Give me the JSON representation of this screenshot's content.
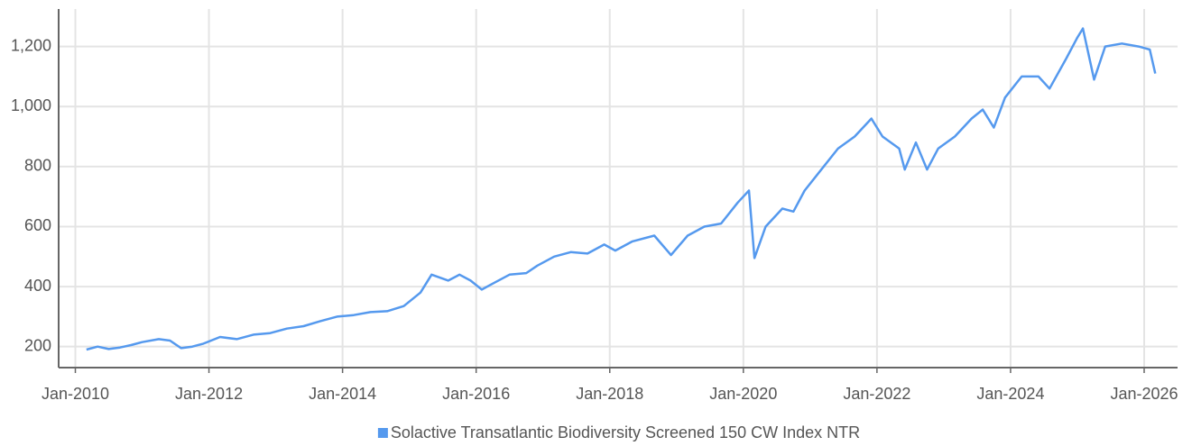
{
  "chart_data": {
    "type": "line",
    "x": [
      "2010-03",
      "2010-05",
      "2010-07",
      "2010-09",
      "2010-11",
      "2011-01",
      "2011-04",
      "2011-06",
      "2011-08",
      "2011-10",
      "2011-12",
      "2012-03",
      "2012-06",
      "2012-09",
      "2012-12",
      "2013-03",
      "2013-06",
      "2013-09",
      "2013-12",
      "2014-03",
      "2014-06",
      "2014-09",
      "2014-12",
      "2015-03",
      "2015-05",
      "2015-08",
      "2015-10",
      "2015-12",
      "2016-02",
      "2016-04",
      "2016-07",
      "2016-10",
      "2016-12",
      "2017-03",
      "2017-06",
      "2017-09",
      "2017-12",
      "2018-02",
      "2018-05",
      "2018-09",
      "2018-12",
      "2019-03",
      "2019-06",
      "2019-09",
      "2019-12",
      "2020-02",
      "2020-03",
      "2020-05",
      "2020-08",
      "2020-10",
      "2020-12",
      "2021-03",
      "2021-06",
      "2021-09",
      "2021-12",
      "2022-02",
      "2022-05",
      "2022-06",
      "2022-08",
      "2022-10",
      "2022-12",
      "2023-03",
      "2023-06",
      "2023-08",
      "2023-10",
      "2023-12",
      "2024-03",
      "2024-06",
      "2024-08",
      "2024-11",
      "2025-01",
      "2025-02",
      "2025-04",
      "2025-06",
      "2025-09",
      "2025-12",
      "2026-02",
      "2026-03"
    ],
    "series": [
      {
        "name": "Solactive Transatlantic Biodiversity Screened 150 CW Index NTR",
        "color": "#5599ee",
        "values": [
          190,
          200,
          192,
          197,
          205,
          215,
          225,
          220,
          195,
          200,
          210,
          232,
          225,
          240,
          245,
          260,
          268,
          285,
          300,
          305,
          315,
          318,
          335,
          380,
          440,
          420,
          440,
          420,
          390,
          410,
          440,
          445,
          470,
          500,
          515,
          510,
          540,
          520,
          550,
          570,
          505,
          570,
          600,
          610,
          680,
          720,
          495,
          600,
          660,
          650,
          720,
          790,
          860,
          900,
          960,
          900,
          860,
          790,
          880,
          790,
          860,
          900,
          960,
          990,
          930,
          1030,
          1100,
          1100,
          1060,
          1160,
          1230,
          1260,
          1090,
          1200,
          1210,
          1200,
          1190,
          1110
        ]
      }
    ],
    "xlim": [
      "2009-10",
      "2026-07"
    ],
    "xticks": [
      {
        "value": "2010-01",
        "label": "Jan-2010"
      },
      {
        "value": "2012-01",
        "label": "Jan-2012"
      },
      {
        "value": "2014-01",
        "label": "Jan-2014"
      },
      {
        "value": "2016-01",
        "label": "Jan-2016"
      },
      {
        "value": "2018-01",
        "label": "Jan-2018"
      },
      {
        "value": "2020-01",
        "label": "Jan-2020"
      },
      {
        "value": "2022-01",
        "label": "Jan-2022"
      },
      {
        "value": "2024-01",
        "label": "Jan-2024"
      },
      {
        "value": "2026-01",
        "label": "Jan-2026"
      }
    ],
    "ylim": [
      130,
      1325
    ],
    "yticks": [
      200,
      400,
      600,
      800,
      {
        "value": 1000,
        "label": "1,000"
      },
      {
        "value": 1200,
        "label": "1,200"
      }
    ],
    "grid": true,
    "legend": "bottom"
  }
}
